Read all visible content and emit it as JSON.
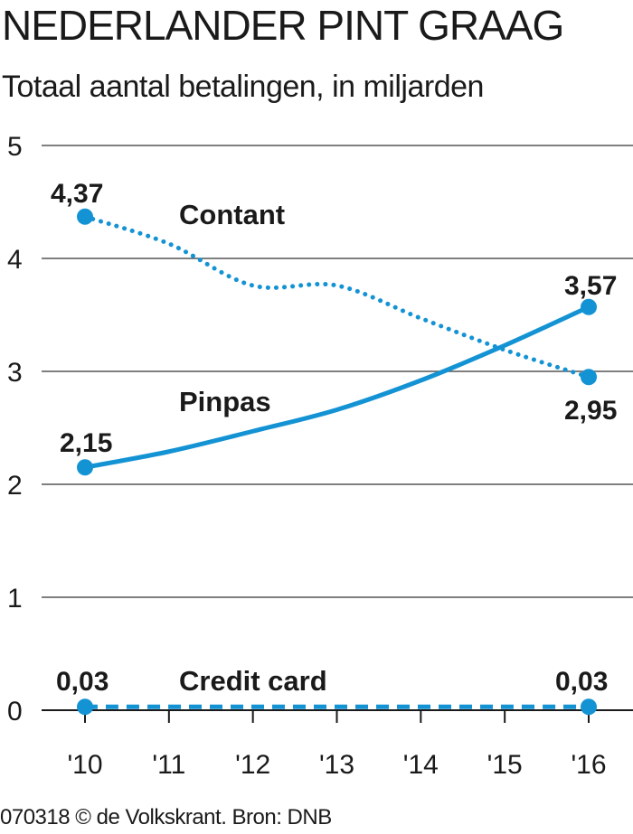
{
  "header": {
    "title": "NEDERLANDER PINT GRAAG",
    "subtitle": "Totaal aantal betalingen, in miljarden"
  },
  "footer": {
    "credit": "070318 © de Volkskrant. Bron: DNB"
  },
  "colors": {
    "series": "#1493d4",
    "grid": "#555555",
    "text": "#1a1a1a"
  },
  "chart_data": {
    "type": "line",
    "title": "NEDERLANDER PINT GRAAG",
    "subtitle": "Totaal aantal betalingen, in miljarden",
    "x": [
      "'10",
      "'11",
      "'12",
      "'13",
      "'14",
      "'15",
      "'16"
    ],
    "ylim": [
      0,
      5
    ],
    "yticks": [
      "0",
      "1",
      "2",
      "3",
      "4",
      "5"
    ],
    "grid": true,
    "series": [
      {
        "name": "Contant",
        "style": "dotted",
        "values": [
          4.37,
          4.13,
          3.76,
          3.76,
          3.47,
          3.19,
          2.95
        ],
        "labels": {
          "first": "4,37",
          "last": "2,95"
        }
      },
      {
        "name": "Pinpas",
        "style": "solid",
        "values": [
          2.15,
          2.29,
          2.47,
          2.66,
          2.92,
          3.23,
          3.57
        ],
        "labels": {
          "first": "2,15",
          "last": "3,57"
        }
      },
      {
        "name": "Credit card",
        "style": "dashed",
        "values": [
          0.03,
          0.03,
          0.03,
          0.03,
          0.03,
          0.03,
          0.03
        ],
        "labels": {
          "first": "0,03",
          "last": "0,03"
        }
      }
    ],
    "source": "DNB"
  }
}
